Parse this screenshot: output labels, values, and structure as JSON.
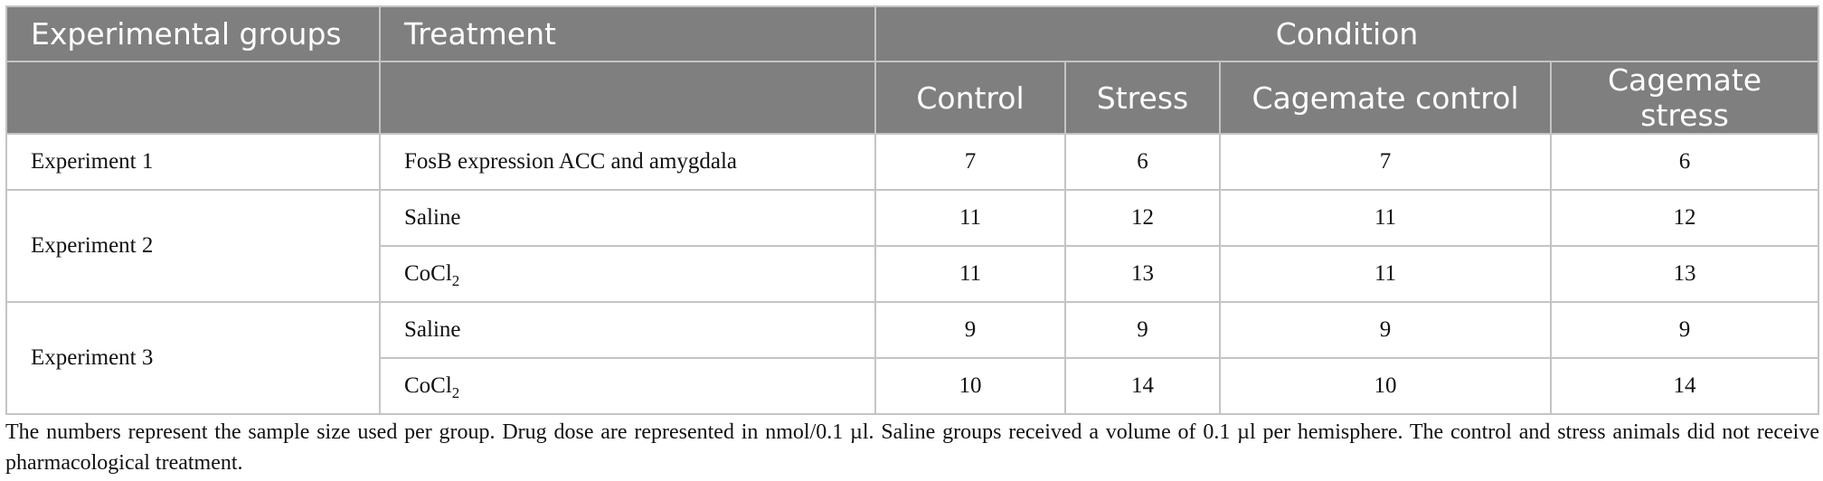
{
  "table": {
    "headers": {
      "group": "Experimental groups",
      "treatment": "Treatment",
      "condition": "Condition",
      "conditions": [
        "Control",
        "Stress",
        "Cagemate control",
        "Cagemate stress"
      ]
    },
    "rows": [
      {
        "group": "Experiment 1",
        "treatment": "FosB expression ACC and amygdala",
        "values": [
          "7",
          "6",
          "7",
          "6"
        ]
      },
      {
        "group": "Experiment 2",
        "treatment": "Saline",
        "values": [
          "11",
          "12",
          "11",
          "12"
        ]
      },
      {
        "treatment_base": "CoCl",
        "treatment_sub": "2",
        "values": [
          "11",
          "13",
          "11",
          "13"
        ]
      },
      {
        "group": "Experiment 3",
        "treatment": "Saline",
        "values": [
          "9",
          "9",
          "9",
          "9"
        ]
      },
      {
        "treatment_base": "CoCl",
        "treatment_sub": "2",
        "values": [
          "10",
          "14",
          "10",
          "14"
        ]
      }
    ]
  },
  "footnote": "The numbers represent the sample size used per group. Drug dose are represented in nmol/0.1 µl. Saline groups received a volume of 0.1 µl per hemisphere. The control and stress animals did not receive pharmacological treatment."
}
